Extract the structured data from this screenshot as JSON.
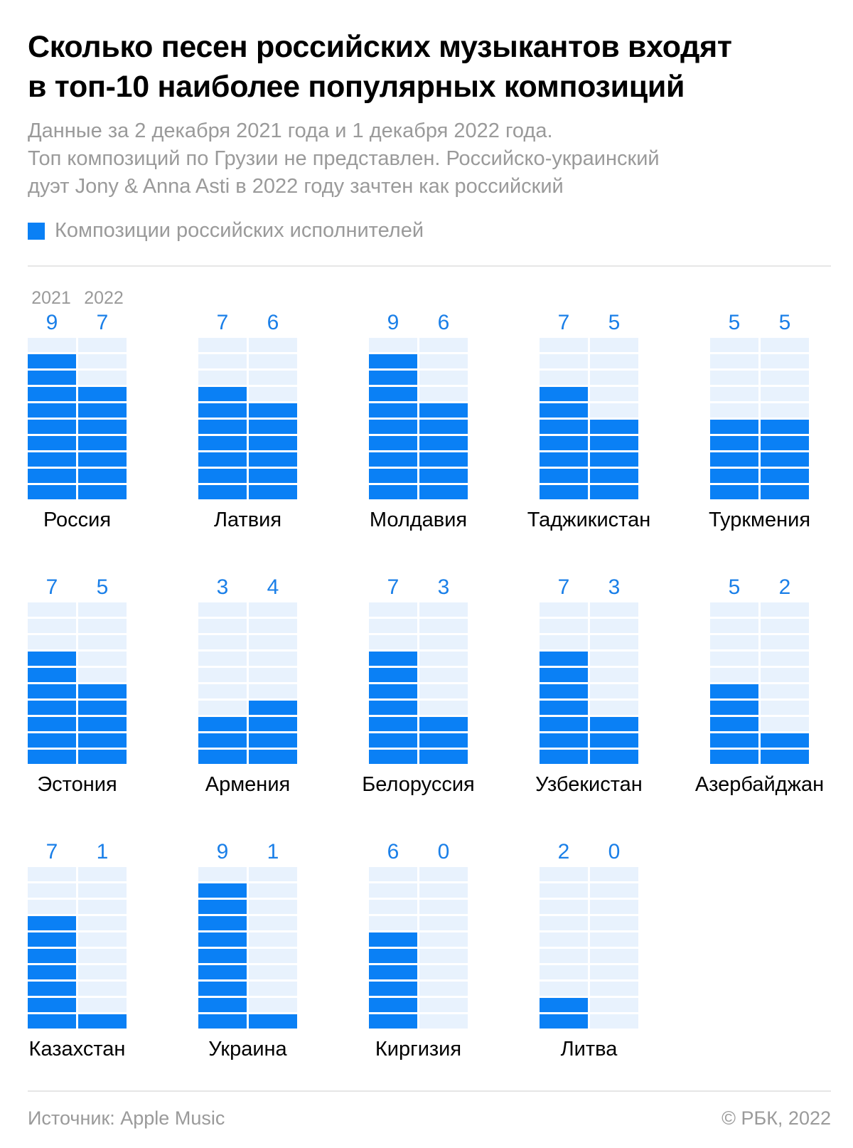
{
  "title": {
    "line1": "Сколько песен российских музыкантов входят",
    "line2": "в топ-10 наиболее популярных композиций"
  },
  "subtitle": {
    "line1": "Данные за 2 декабря 2021 года и 1 декабря 2022 года.",
    "line2": "Топ композиций по Грузии не представлен. Российско-украинский",
    "line3": "дуэт Jony & Anna Asti в 2022 году зачтен как российский"
  },
  "legend": {
    "label": "Композиции российских исполнителей"
  },
  "colors": {
    "filled": "#0a80f5",
    "empty": "#e8f2fd",
    "value_text": "#1a7fe8",
    "muted": "#9a9a9a"
  },
  "chart_data": {
    "type": "bar",
    "unit_max": 10,
    "years": [
      "2021",
      "2022"
    ],
    "series": [
      {
        "name": "2021",
        "values": [
          9,
          7,
          9,
          7,
          5,
          7,
          3,
          7,
          7,
          5,
          7,
          9,
          6,
          2
        ]
      },
      {
        "name": "2022",
        "values": [
          7,
          6,
          6,
          5,
          5,
          5,
          4,
          3,
          3,
          2,
          1,
          1,
          0,
          0
        ]
      }
    ],
    "categories": [
      "Россия",
      "Латвия",
      "Молдавия",
      "Таджикистан",
      "Туркмения",
      "Эстония",
      "Армения",
      "Белоруссия",
      "Узбекистан",
      "Азербайджан",
      "Казахстан",
      "Украина",
      "Киргизия",
      "Литва"
    ],
    "legend": "Композиции российских исполнителей"
  },
  "footer": {
    "source": "Источник: Apple Music",
    "copyright": "© РБК, 2022"
  }
}
